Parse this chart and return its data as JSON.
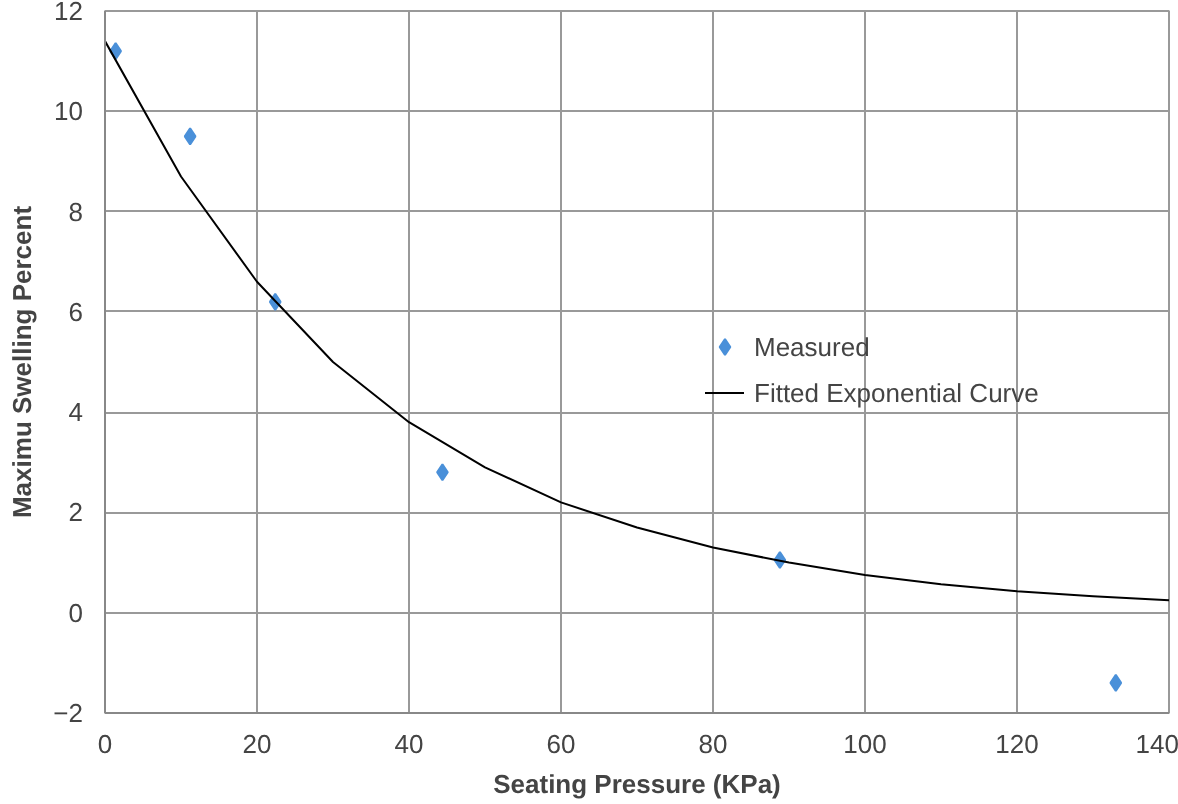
{
  "chart_data": {
    "type": "scatter",
    "xlabel": "Seating Pressure (KPa)",
    "ylabel": "Maximu Swelling Percent",
    "xlim": [
      0,
      140
    ],
    "xticks": [
      0,
      20,
      40,
      60,
      80,
      100,
      120,
      140
    ],
    "ylim": [
      -2,
      12
    ],
    "yticks": [
      -2,
      0,
      2,
      4,
      6,
      8,
      10,
      12
    ],
    "grid": true,
    "legend": "right",
    "series": [
      {
        "name": "Measured",
        "marker": "diamond",
        "color": "#4a90d9",
        "x": [
          1.4,
          11.2,
          22.4,
          44.4,
          88.8,
          133
        ],
        "values": [
          11.2,
          9.5,
          6.2,
          2.8,
          1.05,
          -1.4
        ]
      },
      {
        "name": "Fitted Exponential Curve",
        "type": "line",
        "marker": "none",
        "line_style": "solid",
        "color": "#000000",
        "x": [
          0,
          10,
          20,
          30,
          40,
          50,
          60,
          70,
          80,
          90,
          100,
          110,
          120,
          130,
          140
        ],
        "values": [
          11.4,
          8.7,
          6.6,
          5.0,
          3.8,
          2.9,
          2.2,
          1.7,
          1.3,
          1.0,
          0.75,
          0.57,
          0.43,
          0.33,
          0.25
        ]
      }
    ]
  }
}
